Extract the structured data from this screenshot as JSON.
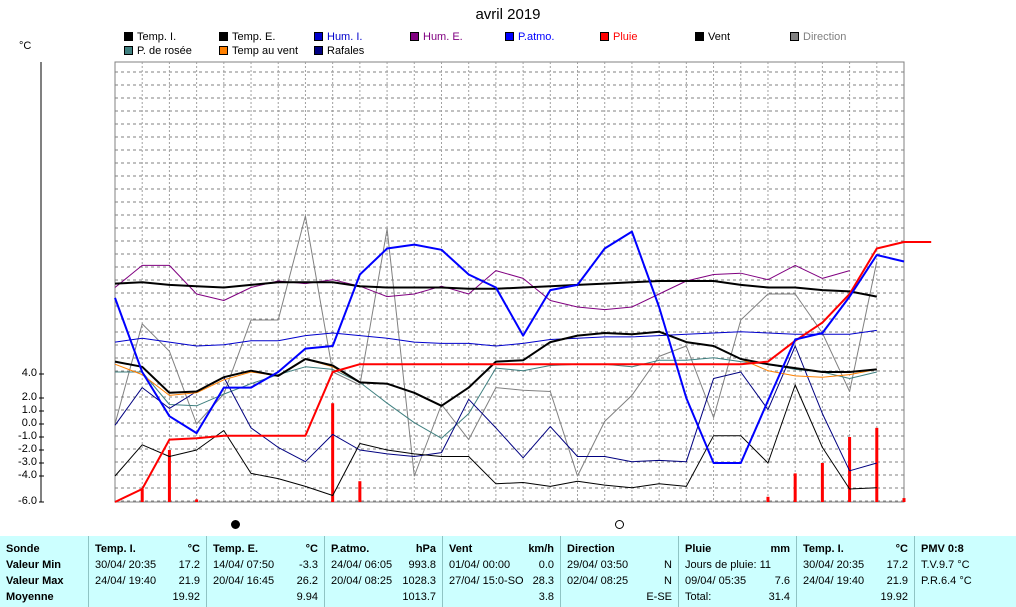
{
  "chart_data": {
    "type": "line",
    "title": "avril 2019",
    "ylabel": "°C",
    "y_ticks": [
      "4.0",
      "2.0",
      "1.0",
      "0.0",
      "-1.0",
      "-2.0",
      "-3.0",
      "-4.0",
      "-6.0"
    ],
    "days": 30,
    "grid": true,
    "legend_placement": "top",
    "legend": [
      {
        "label": "Temp. I.",
        "color": "#000000"
      },
      {
        "label": "Temp. E.",
        "color": "#000000"
      },
      {
        "label": "Hum. I.",
        "color": "#0000cc"
      },
      {
        "label": "Hum. E.",
        "color": "#800080"
      },
      {
        "label": "P.atmo.",
        "color": "#0000ff"
      },
      {
        "label": "Pluie",
        "color": "#ff0000"
      },
      {
        "label": "Vent",
        "color": "#000000"
      },
      {
        "label": "Direction",
        "color": "#808080"
      },
      {
        "label": "P. de rosée",
        "color": "#408080"
      },
      {
        "label": "Temp au vent",
        "color": "#ff8000"
      },
      {
        "label": "Rafales",
        "color": "#000080"
      }
    ],
    "series": [
      {
        "name": "Temp. E.",
        "color": "#000000",
        "width": 2,
        "values": [
          4.8,
          4.4,
          2.4,
          2.5,
          3.6,
          4.1,
          3.7,
          5.0,
          4.5,
          3.2,
          3.1,
          2.4,
          1.4,
          2.8,
          4.8,
          4.9,
          6.3,
          6.8,
          7.0,
          6.9,
          7.1,
          6.3,
          6.0,
          5.0,
          4.6,
          4.3,
          4.0,
          4.0,
          4.2
        ]
      },
      {
        "name": "Temp au vent",
        "color": "#ff8000",
        "width": 1,
        "values": [
          4.6,
          3.8,
          2.2,
          2.4,
          3.4,
          4.0,
          3.7,
          5.0,
          4.4,
          3.2,
          3.1,
          2.4,
          1.4,
          2.8,
          4.8,
          4.9,
          6.3,
          6.8,
          7.0,
          6.9,
          7.1,
          6.3,
          6.0,
          5.0,
          4.1,
          3.7,
          3.6,
          3.8,
          4.2
        ]
      },
      {
        "name": "Temp. I.",
        "color": "#000000",
        "width": 2,
        "values": [
          10.8,
          10.9,
          10.7,
          10.6,
          10.5,
          10.7,
          10.9,
          10.9,
          10.9,
          10.6,
          10.5,
          10.5,
          10.5,
          10.4,
          10.4,
          10.5,
          10.6,
          10.7,
          10.8,
          10.9,
          11.0,
          11.0,
          11.0,
          10.7,
          10.5,
          10.5,
          10.3,
          10.2,
          9.8
        ]
      },
      {
        "name": "Hum. I.",
        "color": "#0000cc",
        "width": 1,
        "values": [
          6.3,
          6.6,
          6.3,
          6.0,
          6.1,
          6.4,
          6.4,
          6.8,
          7.0,
          6.8,
          6.6,
          6.3,
          6.2,
          6.2,
          6.0,
          6.2,
          6.5,
          6.6,
          6.7,
          6.7,
          6.8,
          6.9,
          7.0,
          7.1,
          7.0,
          6.9,
          6.9,
          6.9,
          7.2
        ]
      },
      {
        "name": "Hum. E.",
        "color": "#800080",
        "width": 1,
        "values": [
          10.5,
          12.2,
          12.2,
          10.0,
          9.5,
          10.5,
          11.0,
          10.8,
          11.1,
          10.6,
          9.8,
          10.0,
          10.6,
          10.0,
          11.8,
          11.2,
          9.5,
          9.0,
          8.8,
          9.0,
          10.0,
          11.0,
          11.5,
          11.6,
          11.1,
          12.2,
          11.2,
          11.8
        ]
      },
      {
        "name": "P.atmo.",
        "color": "#0000ff",
        "width": 2,
        "values": [
          9.7,
          4.0,
          0.6,
          -0.7,
          2.8,
          2.8,
          4.0,
          5.8,
          6.0,
          11.5,
          13.5,
          13.8,
          13.4,
          11.5,
          10.5,
          6.8,
          10.3,
          10.7,
          13.5,
          14.8,
          9.0,
          2.0,
          -3.0,
          -3.0,
          1.8,
          6.5,
          7.0,
          9.8,
          13.0,
          12.5
        ]
      },
      {
        "name": "Pluie",
        "color": "#ff0000",
        "width": 2,
        "values": [
          -6.0,
          -5.0,
          -1.2,
          -1.1,
          -0.9,
          -0.9,
          -0.9,
          -0.9,
          4.0,
          4.6,
          4.6,
          4.6,
          4.6,
          4.6,
          4.6,
          4.6,
          4.6,
          4.6,
          4.6,
          4.6,
          4.6,
          4.6,
          4.6,
          4.6,
          4.8,
          6.4,
          7.8,
          10.0,
          13.5,
          14.0,
          14.0
        ]
      },
      {
        "name": "Vent",
        "color": "#000000",
        "width": 1,
        "values": [
          -4.0,
          -1.6,
          -2.5,
          -2.0,
          -0.5,
          -3.8,
          -4.2,
          -4.8,
          -5.5,
          -1.5,
          -2.0,
          -2.3,
          -2.5,
          -2.5,
          -4.6,
          -4.5,
          -4.8,
          -4.4,
          -4.7,
          -4.9,
          -4.6,
          -4.8,
          -0.9,
          -0.9,
          -3.0,
          3.0,
          -1.8,
          -5.0,
          -4.9
        ]
      },
      {
        "name": "Rafales",
        "color": "#000080",
        "width": 1,
        "values": [
          -0.1,
          2.8,
          1.2,
          2.5,
          3.6,
          -0.3,
          -1.8,
          -2.9,
          -0.8,
          -2.0,
          -2.3,
          -2.5,
          -2.2,
          1.9,
          -0.3,
          -2.6,
          -0.2,
          -2.5,
          -2.5,
          -2.9,
          -2.8,
          -2.9,
          3.5,
          4.0,
          1.1,
          6.0,
          0.8,
          -3.6,
          -3.0
        ]
      },
      {
        "name": "P. de rosée",
        "color": "#408080",
        "width": 1,
        "values": [
          4.0,
          4.0,
          1.5,
          1.4,
          2.3,
          3.1,
          3.8,
          4.4,
          4.2,
          3.2,
          1.6,
          0.1,
          -1.1,
          0.8,
          4.3,
          4.1,
          4.5,
          4.6,
          4.6,
          4.4,
          4.9,
          4.9,
          5.1,
          4.8,
          4.6,
          4.2,
          4.0,
          3.5,
          4.0
        ]
      },
      {
        "name": "Direction",
        "color": "#808080",
        "width": 1,
        "values": [
          0,
          7.7,
          5.6,
          0,
          2.3,
          8.0,
          8.0,
          16.0,
          4.0,
          3.0,
          15.0,
          -4.0,
          1.5,
          -1.2,
          2.8,
          2.6,
          2.5,
          -4.0,
          0.2,
          2.2,
          5.2,
          6.0,
          0.5,
          8.0,
          10.0,
          10.0,
          7.0,
          2.5,
          12.5
        ]
      }
    ],
    "rain_bars": [
      {
        "day": 1,
        "value": -5.0
      },
      {
        "day": 2,
        "value": -2.0
      },
      {
        "day": 3,
        "value": -5.8
      },
      {
        "day": 8,
        "value": 1.6
      },
      {
        "day": 9,
        "value": -4.4
      },
      {
        "day": 24,
        "value": -5.6
      },
      {
        "day": 25,
        "value": -3.8
      },
      {
        "day": 26,
        "value": -3.0
      },
      {
        "day": 27,
        "value": -1.0
      },
      {
        "day": 28,
        "value": -0.3
      },
      {
        "day": 29,
        "value": -5.7
      }
    ]
  },
  "stats": {
    "rows": [
      "Sonde",
      "Valeur Min",
      "Valeur Max",
      "Moyenne"
    ],
    "columns": [
      {
        "head": "Temp. I.",
        "unit": "°C",
        "min_date": "30/04/ 20:35",
        "min": "17.2",
        "max_date": "24/04/ 19:40",
        "max": "21.9",
        "avg": "19.92"
      },
      {
        "head": "Temp. E.",
        "unit": "°C",
        "min_date": "14/04/ 07:50",
        "min": "-3.3",
        "max_date": "20/04/ 16:45",
        "max": "26.2",
        "avg": "9.94"
      },
      {
        "head": "P.atmo.",
        "unit": "hPa",
        "min_date": "24/04/ 06:05",
        "min": "993.8",
        "max_date": "20/04/ 08:25",
        "max": "1028.3",
        "avg": "1013.7"
      },
      {
        "head": "Vent",
        "unit": "km/h",
        "min_date": "01/04/ 00:00",
        "min": "0.0",
        "max_date": "27/04/ 15:0-SO",
        "max": "28.3",
        "avg": "3.8"
      },
      {
        "head": "Direction",
        "unit": "",
        "min_date": "29/04/ 03:50",
        "min": "N",
        "max_date": "02/04/ 08:25",
        "max": "N",
        "avg": "E-SE"
      },
      {
        "head": "Pluie",
        "unit": "mm",
        "min_date": "Jours de pluie: 11",
        "min": "",
        "max_date": "09/04/ 05:35",
        "max": "7.6",
        "avg_label": "Total:",
        "avg": "31.4"
      },
      {
        "head": "Temp. I.",
        "unit": "°C",
        "min_date": "30/04/ 20:35",
        "min": "17.2",
        "max_date": "24/04/ 19:40",
        "max": "21.9",
        "avg": "19.92"
      }
    ],
    "pmv": {
      "head": "PMV 0:8",
      "line1": "T.V.9.7 °C",
      "line2": "P.R.6.4 °C"
    }
  }
}
